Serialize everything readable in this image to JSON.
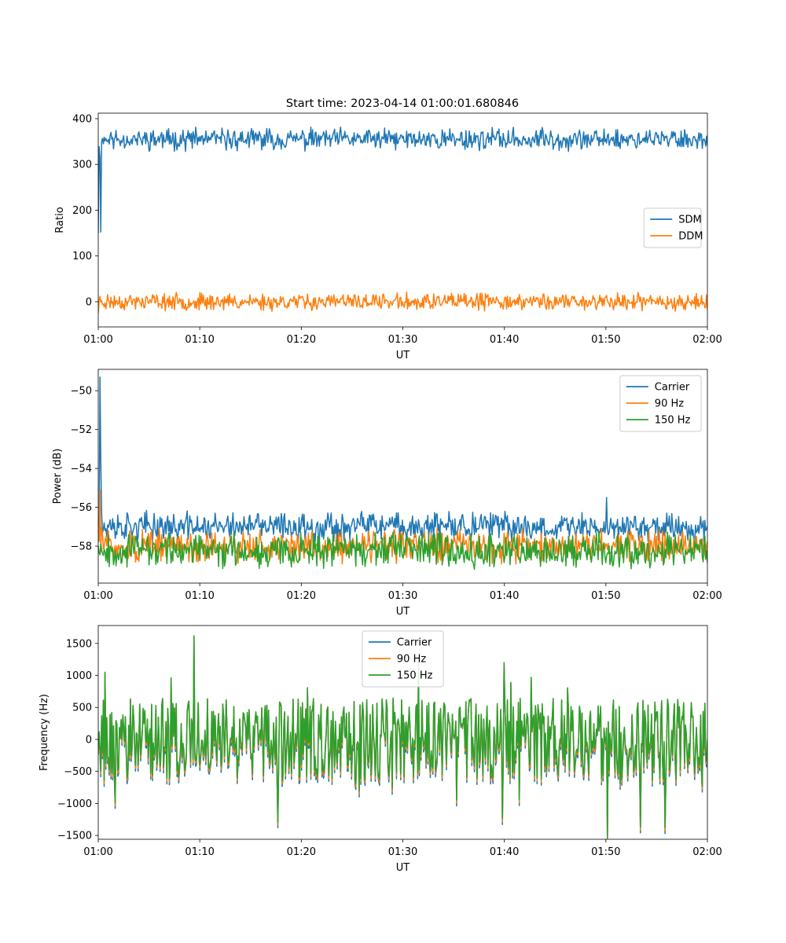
{
  "title": "Start time: 2023-04-14 01:00:01.680846",
  "x_ticks": [
    "01:00",
    "01:10",
    "01:20",
    "01:30",
    "01:40",
    "01:50",
    "02:00"
  ],
  "x_label": "UT",
  "colors": {
    "blue": "#1f77b4",
    "orange": "#ff7f0e",
    "green": "#2ca02c"
  },
  "chart_data": [
    {
      "type": "line",
      "title": "Start time: 2023-04-14 01:00:01.680846",
      "xlabel": "UT",
      "ylabel": "Ratio",
      "xlim": [
        "01:00",
        "02:00"
      ],
      "ylim": [
        -55,
        412
      ],
      "yticks": [
        0,
        100,
        200,
        300,
        400
      ],
      "legend": "center-right",
      "series": [
        {
          "name": "SDM",
          "color": "#1f77b4",
          "base": 355,
          "noise": 28,
          "seed": 11,
          "x": [
            "01:00:00",
            "01:00:08",
            "01:00:15",
            "01:00:20",
            "01:00:30",
            "01:01:00",
            "01:59:50",
            "02:00:00"
          ],
          "y": [
            150,
            315,
            152,
            350,
            345,
            355,
            340,
            342
          ]
        },
        {
          "name": "DDM",
          "color": "#ff7f0e",
          "base": 0,
          "noise": 22,
          "seed": 23,
          "x": [
            "01:00:00",
            "01:00:30",
            "01:59:50",
            "02:00:00"
          ],
          "y": [
            -25,
            -5,
            -12,
            -18
          ]
        }
      ]
    },
    {
      "type": "line",
      "title": "",
      "xlabel": "UT",
      "ylabel": "Power (dB)",
      "xlim": [
        "01:00",
        "02:00"
      ],
      "ylim": [
        -59.9,
        -48.9
      ],
      "yticks": [
        -58,
        -56,
        -54,
        -52,
        -50
      ],
      "legend": "top-right",
      "series": [
        {
          "name": "Carrier",
          "color": "#1f77b4",
          "base": -57.0,
          "noise": 0.9,
          "seed": 37,
          "x": [
            "01:00:00",
            "01:00:10",
            "01:00:15",
            "01:00:22",
            "01:00:40",
            "01:50:00",
            "01:50:05",
            "01:50:10"
          ],
          "y": [
            -56.5,
            -49.3,
            -53.5,
            -56.3,
            -57.2,
            -57.0,
            -55.5,
            -57.1
          ]
        },
        {
          "name": "90 Hz",
          "color": "#ff7f0e",
          "base": -58.0,
          "noise": 1.0,
          "seed": 51,
          "x": [
            "01:00:00",
            "01:00:10",
            "01:00:20",
            "01:00:40"
          ],
          "y": [
            -57.8,
            -55.1,
            -57.0,
            -57.7
          ]
        },
        {
          "name": "150 Hz",
          "color": "#2ca02c",
          "base": -58.2,
          "noise": 1.0,
          "seed": 67,
          "x": [
            "01:00:00",
            "01:00:15",
            "01:00:40"
          ],
          "y": [
            -58.0,
            -57.9,
            -58.3
          ]
        }
      ]
    },
    {
      "type": "line",
      "title": "",
      "xlabel": "UT",
      "ylabel": "Frequency (Hz)",
      "xlim": [
        "01:00",
        "02:00"
      ],
      "ylim": [
        -1560,
        1780
      ],
      "yticks": [
        -1500,
        -1000,
        -500,
        0,
        500,
        1000,
        1500
      ],
      "legend": "top-center",
      "series": [
        {
          "name": "Carrier",
          "color": "#1f77b4",
          "offset": -60,
          "seed": 79,
          "x": [],
          "y": []
        },
        {
          "name": "90 Hz",
          "color": "#ff7f0e",
          "offset": -30,
          "seed": 79,
          "x": [],
          "y": []
        },
        {
          "name": "150 Hz",
          "color": "#2ca02c",
          "offset": 0,
          "seed": 79,
          "base": 0,
          "noise": 650,
          "x": [
            "01:00:00",
            "01:00:40",
            "01:09:25",
            "01:09:40",
            "01:17:40",
            "01:39:50",
            "01:40:00",
            "01:53:25",
            "01:55:50"
          ],
          "y": [
            -150,
            1050,
            1620,
            -300,
            -1290,
            -1240,
            1200,
            -1370,
            -1380
          ]
        }
      ]
    }
  ]
}
